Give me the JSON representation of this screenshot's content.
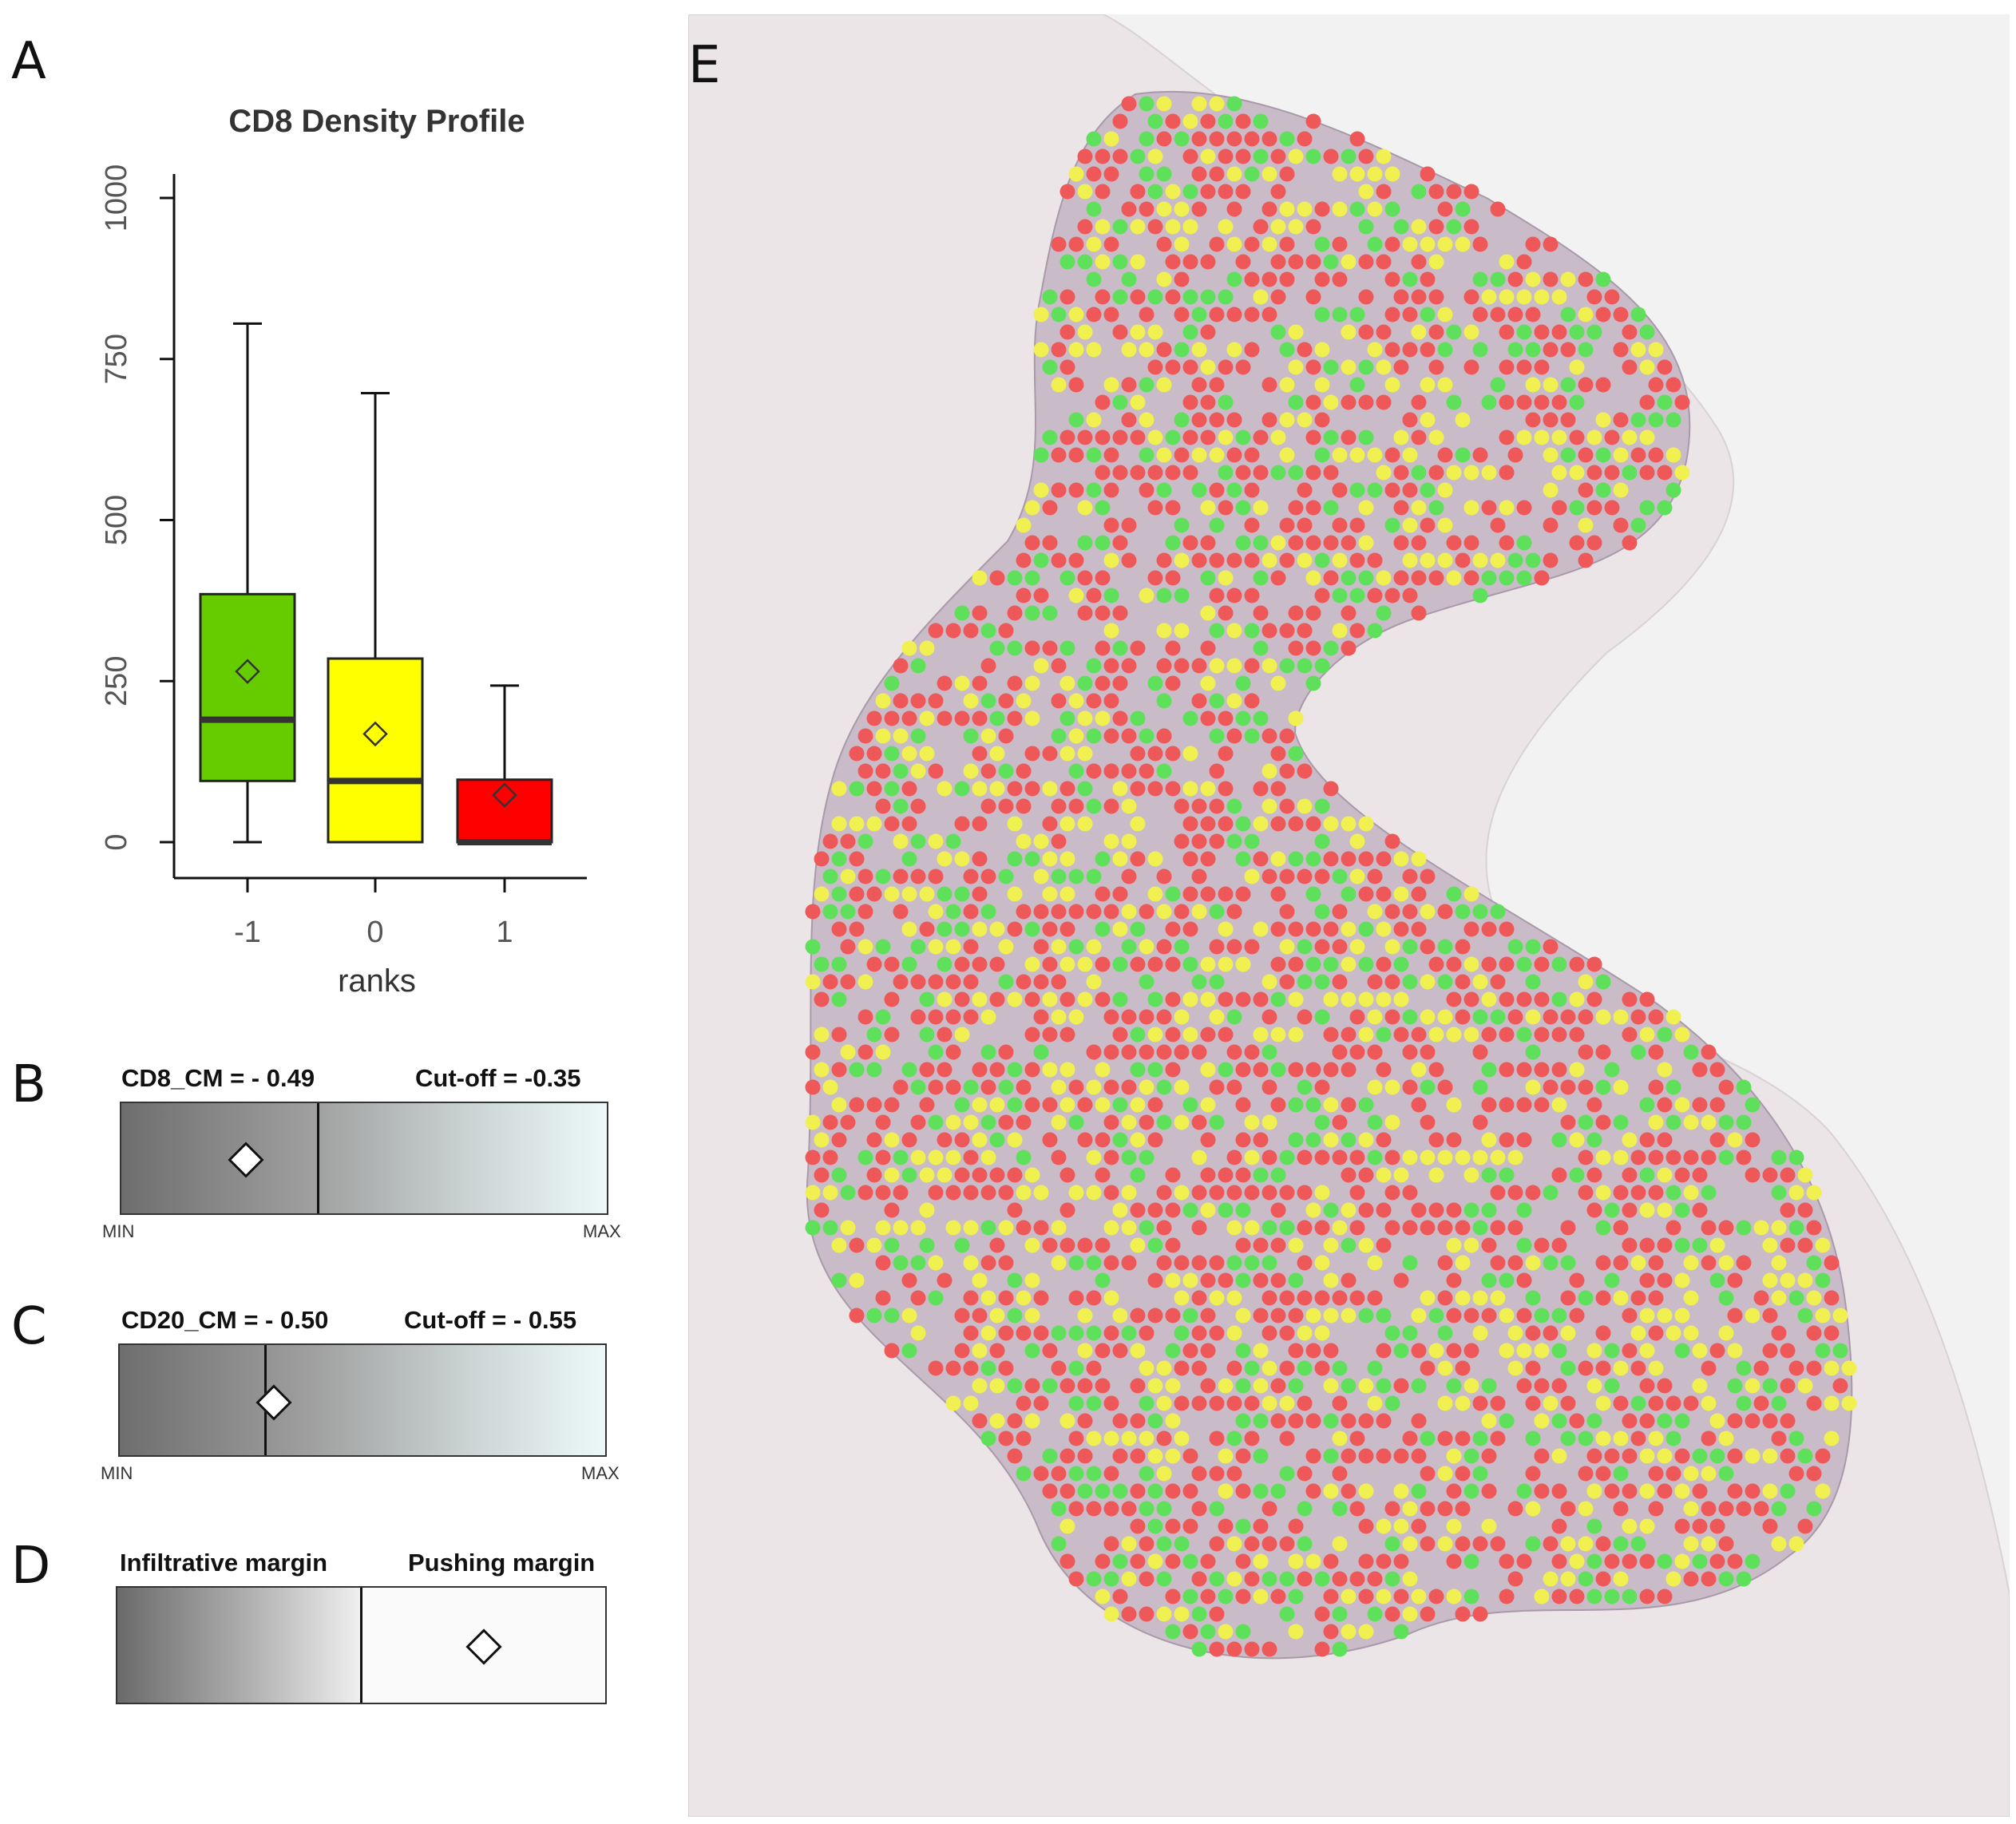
{
  "panels": {
    "A": "A",
    "B": "B",
    "C": "C",
    "D": "D",
    "E": "E"
  },
  "chart_data": {
    "type": "box",
    "title": "CD8 Density Profile",
    "xlabel": "ranks",
    "ylabel": "",
    "ylim": [
      0,
      1050
    ],
    "yticks": [
      "0",
      "250",
      "500",
      "750",
      "1000"
    ],
    "categories": [
      "-1",
      "0",
      "1"
    ],
    "boxes": [
      {
        "rank": "-1",
        "min": 0,
        "q1": 95,
        "median": 190,
        "q3": 385,
        "max": 805,
        "mean": 265,
        "color": "#66cc00"
      },
      {
        "rank": "0",
        "min": 0,
        "q1": 0,
        "median": 95,
        "q3": 285,
        "max": 697,
        "mean": 168,
        "color": "#ffff00"
      },
      {
        "rank": "1",
        "min": 0,
        "q1": 0,
        "median": 0,
        "q3": 97,
        "max": 243,
        "mean": 73,
        "color": "#ff0000"
      }
    ]
  },
  "panel_b": {
    "left_label": "CD8_CM = - 0.49",
    "right_label": "Cut-off = -0.35",
    "min_label": "MIN",
    "max_label": "MAX",
    "cutoff_fraction": 0.405,
    "marker_fraction": 0.255
  },
  "panel_c": {
    "left_label": "CD20_CM = - 0.50",
    "right_label": "Cut-off = - 0.55",
    "min_label": "MIN",
    "max_label": "MAX",
    "cutoff_fraction": 0.3,
    "marker_fraction": 0.315
  },
  "panel_d": {
    "left_label": "Infiltrative margin",
    "right_label": "Pushing margin",
    "divider_fraction": 0.5,
    "marker_fraction": 0.75
  },
  "colors": {
    "green": "#5fe05a",
    "yellow": "#f0f050",
    "red": "#ef5858",
    "tissue": "#cdc3cb"
  }
}
